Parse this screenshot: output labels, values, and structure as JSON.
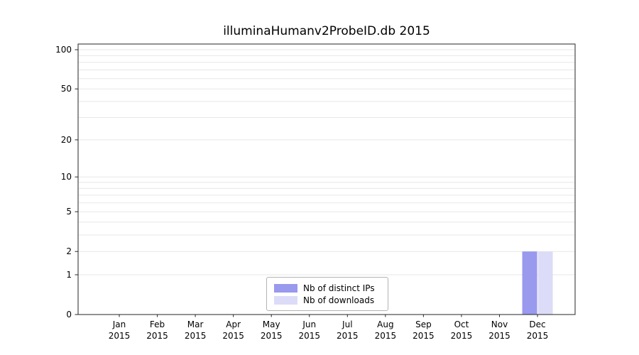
{
  "title": "illuminaHumanv2ProbeID.db 2015",
  "chart_data": {
    "type": "bar",
    "title": "illuminaHumanv2ProbeID.db 2015",
    "categories": [
      "Jan",
      "Feb",
      "Mar",
      "Apr",
      "May",
      "Jun",
      "Jul",
      "Aug",
      "Sep",
      "Oct",
      "Nov",
      "Dec"
    ],
    "x_year_label": "2015",
    "series": [
      {
        "name": "Nb of distinct IPs",
        "color": "#9999ee",
        "values": [
          0,
          0,
          0,
          0,
          0,
          0,
          0,
          0,
          0,
          0,
          0,
          2
        ]
      },
      {
        "name": "Nb of downloads",
        "color": "#dcdcf8",
        "values": [
          0,
          0,
          0,
          0,
          0,
          0,
          0,
          0,
          0,
          0,
          0,
          2
        ]
      }
    ],
    "yscale": "log10(1+v)",
    "y_ticks": [
      0,
      1,
      2,
      5,
      10,
      20,
      50,
      100
    ],
    "y_minor_gridlines": [
      1,
      2,
      3,
      4,
      5,
      6,
      7,
      8,
      9,
      10,
      20,
      30,
      40,
      50,
      60,
      70,
      80,
      90,
      100
    ],
    "ylim": [
      0,
      110
    ],
    "grid": "horizontal-minor",
    "legend_position": "lower center",
    "colors": {
      "grid": "#e7e7e7",
      "axis": "#262626",
      "text": "#000000",
      "background": "#ffffff"
    }
  }
}
